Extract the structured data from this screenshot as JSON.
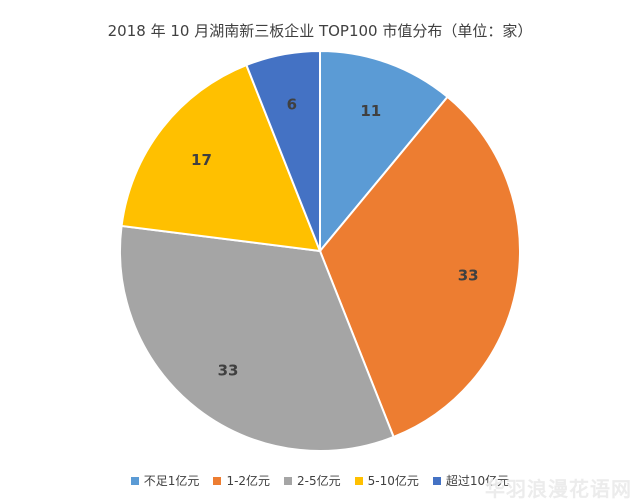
{
  "chart_data": {
    "type": "pie",
    "title": "2018 年 10 月湖南新三板企业 TOP100 市值分布（单位：家）",
    "categories": [
      "不足1亿元",
      "1-2亿元",
      "2-5亿元",
      "5-10亿元",
      "超过10亿元"
    ],
    "values": [
      11,
      33,
      33,
      17,
      6
    ],
    "colors": [
      "#5B9BD5",
      "#ED7D31",
      "#A5A5A5",
      "#FFC000",
      "#4472C4"
    ],
    "legend": "bottom"
  },
  "watermark": "华羽浪漫花语网"
}
